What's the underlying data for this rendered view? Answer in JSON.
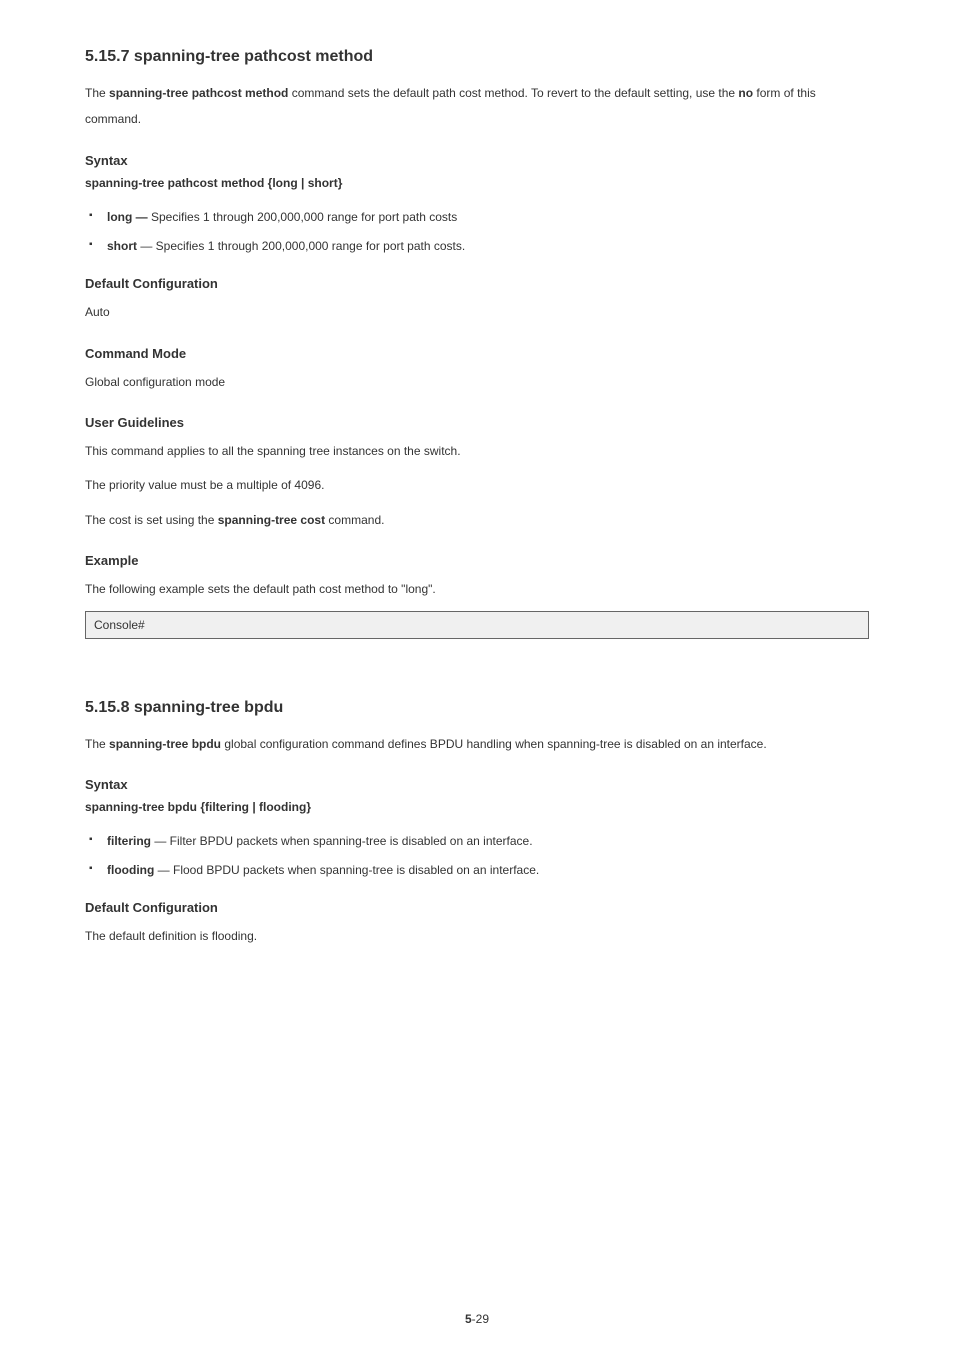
{
  "section1": {
    "title": "5.15.7 spanning-tree pathcost method",
    "intro_prefix": "The ",
    "intro_cmd": "spanning-tree pathcost method",
    "intro_mid": " command sets the default path cost method. To revert to the default setting, use the ",
    "intro_no": "no",
    "intro_suffix": " form of this command.",
    "syntax_heading": "Syntax",
    "syntax_line": "spanning-tree pathcost method {long | short}",
    "syntax_bullets": [
      {
        "kw": "long —",
        "rest": " Specifies 1 through 200,000,000 range for port path costs"
      },
      {
        "kw": "short",
        "rest": " — Specifies 1 through 200,000,000 range for port path costs."
      }
    ],
    "default_heading": "Default Configuration",
    "default_text": "Auto",
    "mode_heading": "Command Mode",
    "mode_text": "Global configuration mode",
    "ug_heading": "User Guidelines",
    "ug_lines": [
      "This command applies to all the spanning tree instances on the switch.",
      "The priority value must be a multiple of 4096."
    ],
    "ug_cost_prefix": "The cost is set using the ",
    "ug_cost_cmd": "spanning-tree cost",
    "ug_cost_suffix": " command.",
    "example_heading": "Example",
    "example_intro": "The following example sets the default path cost method to \"long\".",
    "example_code": "Console#"
  },
  "section2": {
    "title": "5.15.8 spanning-tree bpdu",
    "intro_prefix": "The ",
    "intro_cmd": "spanning-tree bpdu",
    "intro_suffix": " global configuration command defines BPDU handling when spanning-tree is disabled on an interface.",
    "syntax_heading": "Syntax",
    "syntax_line": "spanning-tree bpdu {filtering | flooding}",
    "syntax_bullets": [
      {
        "kw": "filtering",
        "rest": " — Filter BPDU packets when spanning-tree is disabled on an interface."
      },
      {
        "kw": "flooding",
        "rest": " — Flood BPDU packets when spanning-tree is disabled on an interface."
      }
    ],
    "default_heading": "Default Configuration",
    "default_text": "The default definition is flooding."
  },
  "page_number_prefix": "5",
  "page_number": "-29"
}
